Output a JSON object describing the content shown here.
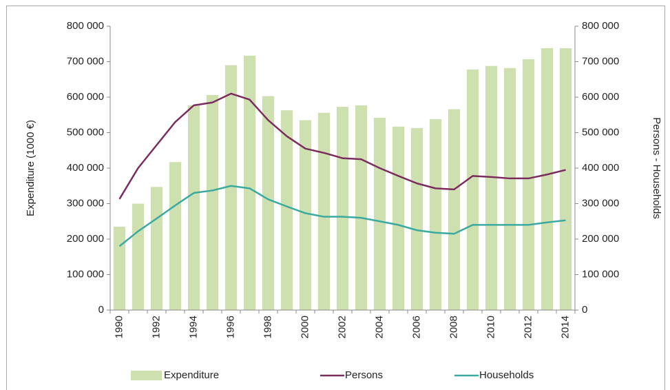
{
  "chart_data": {
    "type": "bar",
    "y_label": "Expenditure (1000 €)",
    "y2_label": "Persons - Households",
    "categories": [
      "1990",
      null,
      "1992",
      null,
      "1994",
      null,
      "1996",
      null,
      "1998",
      null,
      "2000",
      null,
      "2002",
      null,
      "2004",
      null,
      "2006",
      null,
      "2008",
      null,
      "2010",
      null,
      "2012",
      null,
      "2014"
    ],
    "series": [
      {
        "name": "Expenditure",
        "type": "bar",
        "color": "#cfe0b0",
        "values": [
          235000,
          300000,
          347000,
          417000,
          577000,
          606000,
          690000,
          717000,
          603000,
          563000,
          535000,
          556000,
          573000,
          577000,
          542000,
          517000,
          513000,
          538000,
          566000,
          678000,
          688000,
          682000,
          707000,
          738000,
          738000
        ]
      },
      {
        "name": "Persons",
        "type": "line",
        "axis": "y2",
        "color": "#7b2c5e",
        "values": [
          313000,
          400000,
          465000,
          530000,
          577000,
          585000,
          610000,
          593000,
          535000,
          490000,
          455000,
          443000,
          428000,
          425000,
          400000,
          378000,
          357000,
          343000,
          340000,
          378000,
          375000,
          371000,
          371000,
          382000,
          395000
        ]
      },
      {
        "name": "Households",
        "type": "line",
        "axis": "y2",
        "color": "#3aa99f",
        "values": [
          180000,
          222000,
          258000,
          295000,
          330000,
          337000,
          350000,
          343000,
          312000,
          292000,
          273000,
          263000,
          263000,
          260000,
          250000,
          240000,
          225000,
          218000,
          215000,
          240000,
          240000,
          240000,
          240000,
          247000,
          253000
        ]
      }
    ],
    "ylim": [
      0,
      800000
    ],
    "yticks": [
      0,
      {
        "value": 100000,
        "label": "100 000"
      },
      {
        "value": 200000,
        "label": "200 000"
      },
      {
        "value": 300000,
        "label": "300 000"
      },
      {
        "value": 400000,
        "label": "400 000"
      },
      {
        "value": 500000,
        "label": "500 000"
      },
      {
        "value": 600000,
        "label": "600 000"
      },
      {
        "value": 700000,
        "label": "700 000"
      },
      {
        "value": 800000,
        "label": "800 000"
      }
    ],
    "y2lim": [
      0,
      800000
    ],
    "y2ticks": [
      0,
      {
        "value": 100000,
        "label": "100 000"
      },
      {
        "value": 200000,
        "label": "200 000"
      },
      {
        "value": 300000,
        "label": "300 000"
      },
      {
        "value": 400000,
        "label": "400 000"
      },
      {
        "value": 500000,
        "label": "500 000"
      },
      {
        "value": 600000,
        "label": "600 000"
      },
      {
        "value": 700000,
        "label": "700 000"
      },
      {
        "value": 800000,
        "label": "800 000"
      }
    ],
    "grid": false,
    "legend": "bottom"
  }
}
